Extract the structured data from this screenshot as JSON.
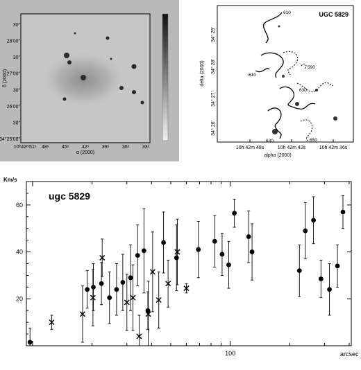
{
  "chart_data": [
    {
      "type": "image",
      "panel": "greyscale-optical-image",
      "ylabel": "δ (2000)",
      "xlabel": "α (2000)",
      "x_tick_labels": [
        "10ʰ42ᵐ51ˢ",
        "48ˢ",
        "45ˢ",
        "42ˢ",
        "39ˢ",
        "36ˢ",
        "33ˢ"
      ],
      "y_tick_labels": [
        "34°25'00\"",
        "30\"",
        "26'00\"",
        "30\"",
        "27'00\"",
        "30\"",
        "28'00\"",
        "30\""
      ],
      "colorbar": "greyscale wedge, dark top to light bottom"
    },
    {
      "type": "contour",
      "panel": "hi-velocity-field",
      "title": "UGC 5829",
      "xlabel": "alpha (2000)",
      "ylabel": "delta (2000)",
      "x_tick_labels": [
        "10h 42m 48s",
        "10h 42m 42s",
        "10h 42m 36s"
      ],
      "y_tick_labels": [
        "34° 26'",
        "34° 27'",
        "34° 28'",
        "34° 29'"
      ],
      "contour_labels": [
        "610",
        "590",
        "610",
        "630",
        "630",
        "650"
      ]
    },
    {
      "type": "scatter",
      "panel": "rotation-curve",
      "title": "ugc 5829",
      "xlabel": "arcsec",
      "ylabel": "Km/s",
      "xscale": "log",
      "xlim": [
        9.3,
        410
      ],
      "ylim": [
        0,
        70
      ],
      "yticks": [
        20,
        40,
        60
      ],
      "xticks_labeled": [
        100
      ],
      "grid": false,
      "series": [
        {
          "marker": "dot",
          "x": [
            9.7,
            18.9,
            20.3,
            22.3,
            24.5,
            26.6,
            28.6,
            31.3,
            34.0,
            36.6,
            38.3,
            46.0,
            53.5,
            69,
            83.5,
            91,
            98.3,
            105,
            124,
            129,
            224,
            240,
            264,
            288,
            318,
            349,
            372
          ],
          "y": [
            1.5,
            24,
            25,
            26.5,
            20.5,
            24,
            27,
            29,
            38.5,
            40.5,
            15,
            44,
            37.5,
            41,
            44.5,
            39,
            34.5,
            56.5,
            46.5,
            40,
            32,
            49,
            53.5,
            28.5,
            24,
            34,
            57
          ],
          "err": [
            6,
            8,
            10,
            9,
            11,
            11,
            12,
            14,
            13,
            18,
            8,
            13,
            14,
            12,
            11,
            9,
            10,
            6,
            11,
            12,
            11,
            12,
            10,
            8,
            11,
            9,
            7
          ]
        },
        {
          "marker": "cross",
          "x": [
            12.5,
            17.9,
            20.2,
            22.5,
            30.0,
            32.2,
            34.6,
            38.5,
            40.5,
            43.5,
            48.5,
            54.0,
            60.0
          ],
          "y": [
            10,
            13.5,
            20.5,
            37.5,
            18.5,
            20.5,
            4,
            13.5,
            31.5,
            19.5,
            26.5,
            40,
            24.5
          ],
          "err": [
            3,
            12,
            12,
            8,
            12,
            14,
            9,
            14,
            17,
            12,
            10,
            14,
            2
          ]
        }
      ]
    }
  ]
}
